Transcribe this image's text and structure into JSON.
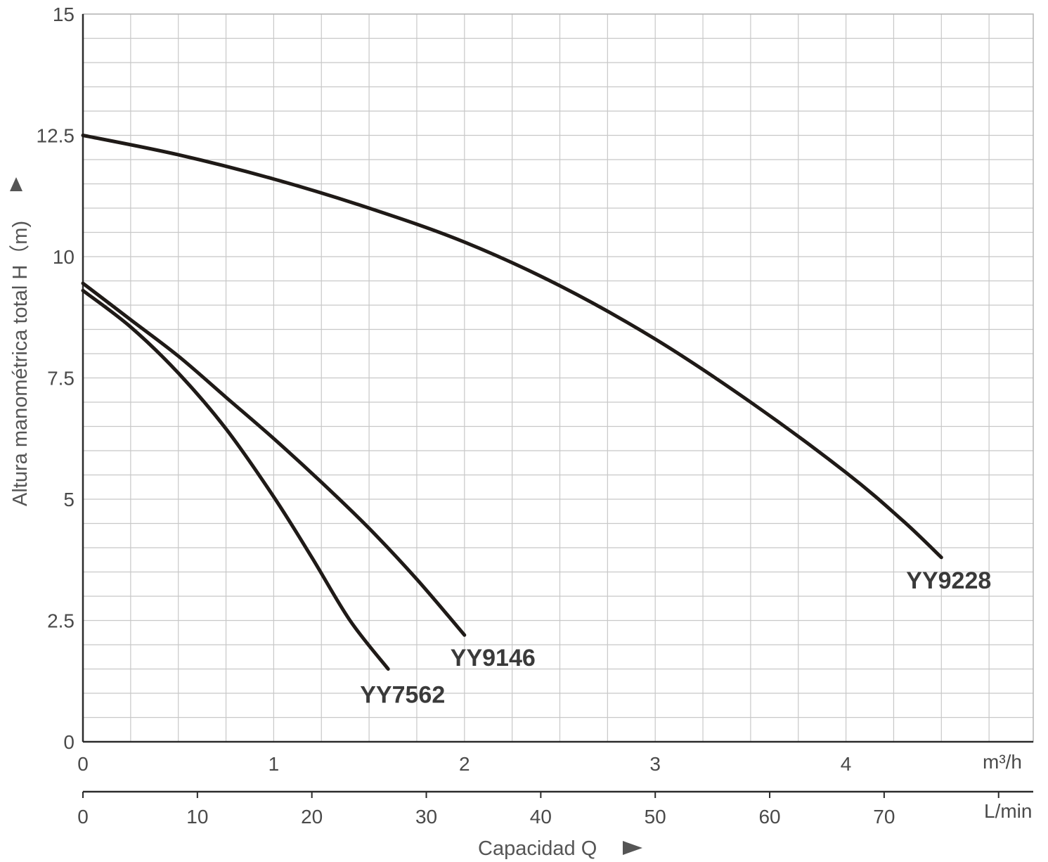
{
  "chart_data": {
    "type": "line",
    "title": "",
    "ylabel": "Altura manométrica total H（m)",
    "xlabel": "Capacidad Q",
    "ylim": [
      0,
      15
    ],
    "xlim_m3h": [
      0,
      5
    ],
    "grid": true,
    "legend": "labels next to curve ends",
    "y_ticks": [
      "0",
      "2.5",
      "5",
      "7.5",
      "10",
      "12.5",
      "15"
    ],
    "x_ticks_m3h": [
      "0",
      "1",
      "2",
      "3",
      "4"
    ],
    "x_unit_m3h": "m³/h",
    "x_ticks_lmin": [
      "0",
      "10",
      "20",
      "30",
      "40",
      "50",
      "60",
      "70"
    ],
    "x_unit_lmin": "L/min",
    "series": [
      {
        "name": "YY9228",
        "x": [
          0,
          0.5,
          1.0,
          1.5,
          2.0,
          2.5,
          3.0,
          3.5,
          4.0,
          4.3,
          4.5
        ],
        "y": [
          12.5,
          12.1,
          11.6,
          11.0,
          10.3,
          9.4,
          8.3,
          7.0,
          5.55,
          4.55,
          3.8
        ]
      },
      {
        "name": "YY9146",
        "x": [
          0,
          0.25,
          0.5,
          0.75,
          1.0,
          1.25,
          1.5,
          1.75,
          2.0
        ],
        "y": [
          9.45,
          8.7,
          7.95,
          7.1,
          6.25,
          5.35,
          4.4,
          3.35,
          2.2
        ]
      },
      {
        "name": "YY7562",
        "x": [
          0,
          0.25,
          0.5,
          0.75,
          1.0,
          1.2,
          1.4,
          1.6
        ],
        "y": [
          9.3,
          8.55,
          7.6,
          6.45,
          5.05,
          3.8,
          2.5,
          1.5
        ]
      }
    ],
    "colors": {
      "curve": "#1f1a17",
      "grid": "#c8c8c8",
      "text": "#4a4a4a"
    }
  }
}
